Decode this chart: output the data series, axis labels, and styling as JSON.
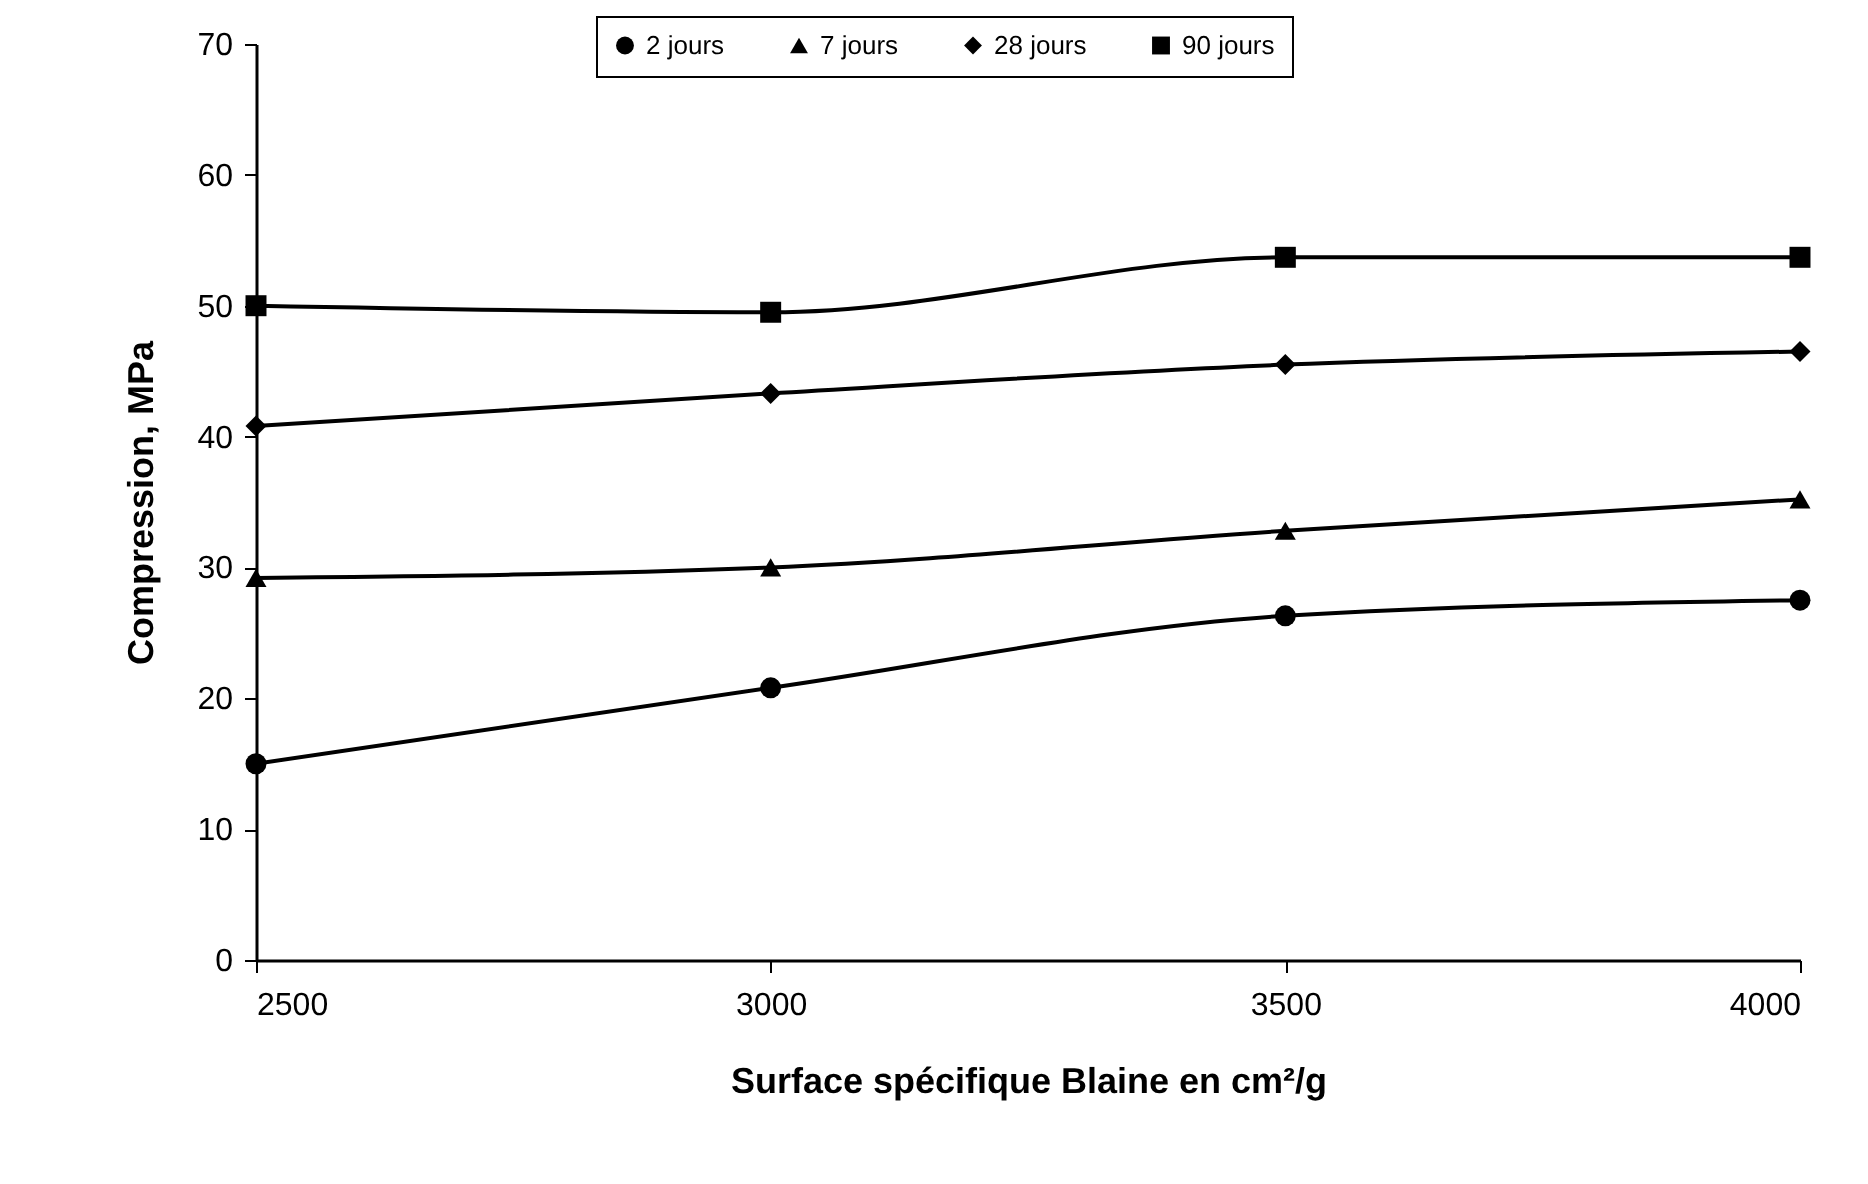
{
  "chart_data": {
    "type": "line",
    "xlabel": "Surface spécifique Blaine en cm²/g",
    "ylabel": "Compression, MPa",
    "x": [
      2500,
      3000,
      3500,
      4000
    ],
    "series": [
      {
        "name": "2 jours",
        "color": "#000000",
        "marker": "circle",
        "values": [
          15.0,
          20.8,
          26.3,
          27.5
        ]
      },
      {
        "name": "7 jours",
        "color": "#000000",
        "marker": "triangle",
        "values": [
          29.2,
          30.0,
          32.8,
          35.2
        ]
      },
      {
        "name": "28 jours",
        "color": "#000000",
        "marker": "diamond",
        "values": [
          40.8,
          43.3,
          45.5,
          46.5
        ]
      },
      {
        "name": "90 jours",
        "color": "#000000",
        "marker": "square",
        "values": [
          50.0,
          49.5,
          53.7,
          53.7
        ]
      }
    ],
    "xlim": [
      2500,
      4000
    ],
    "xticks": [
      2500,
      3000,
      3500,
      4000
    ],
    "ylim": [
      0,
      70
    ],
    "yticks": [
      0,
      10,
      20,
      30,
      40,
      50,
      60,
      70
    ],
    "grid": false,
    "legend": "top",
    "line_style": "solid"
  }
}
